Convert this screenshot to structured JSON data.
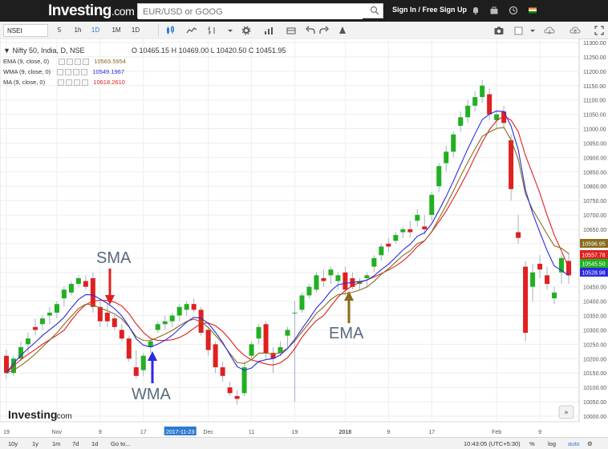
{
  "header": {
    "logo": "Investing",
    "logo_suffix": ".com",
    "search_placeholder": "EUR/USD or GOOG",
    "signin": "Sign In / Free Sign Up"
  },
  "toolbar": {
    "symbol": "NSEI",
    "intervals": [
      "5",
      "1h",
      "1D",
      "1M",
      "1D"
    ],
    "active_interval": "1D"
  },
  "legend": {
    "title": "Nifty 50, India, D, NSE",
    "ohlc": {
      "o": "O 10465.15",
      "h": "H 10469.00",
      "l": "L 10420.50",
      "c": "C 10451.95"
    },
    "indicators": [
      {
        "label": "EMA (9, close, 0)",
        "value": "10569.5954",
        "color": "#8a6a1e"
      },
      {
        "label": "WMA (9, close, 0)",
        "value": "10549.1967",
        "color": "#2a2ae0"
      },
      {
        "label": "MA (9, close, 0)",
        "value": "10618.2610",
        "color": "#e02020"
      }
    ]
  },
  "chart_data": {
    "type": "candlestick",
    "ylim": [
      10000,
      11300
    ],
    "y_ticks": [
      "11300.00",
      "11250.00",
      "11200.00",
      "11150.00",
      "11100.00",
      "11050.00",
      "11000.00",
      "10950.00",
      "10900.00",
      "10850.00",
      "10800.00",
      "10750.00",
      "10700.00",
      "10650.00",
      "10600.00",
      "10550.00",
      "10500.00",
      "10450.00",
      "10400.00",
      "10350.00",
      "10300.00",
      "10250.00",
      "10200.00",
      "10150.00",
      "10100.00",
      "10050.00",
      "10000.00"
    ],
    "x_ticks": [
      {
        "label": "19",
        "i": 0
      },
      {
        "label": "Nov",
        "i": 7
      },
      {
        "label": "9",
        "i": 13
      },
      {
        "label": "17",
        "i": 19
      },
      {
        "label": "2017-11-23",
        "i": 24,
        "highlight": true
      },
      {
        "label": "Dec",
        "i": 28
      },
      {
        "label": "11",
        "i": 34
      },
      {
        "label": "19",
        "i": 40
      },
      {
        "label": "2018",
        "i": 47
      },
      {
        "label": "9",
        "i": 53
      },
      {
        "label": "17",
        "i": 59
      },
      {
        "label": "Feb",
        "i": 68
      },
      {
        "label": "9",
        "i": 74
      }
    ],
    "price_tags": [
      {
        "value": "10596.95",
        "color": "#8a6a1e"
      },
      {
        "value": "10557.78",
        "color": "#e02020"
      },
      {
        "value": "10545.50",
        "color": "#21b021"
      },
      {
        "value": "10528.98",
        "color": "#2a2ae0"
      }
    ],
    "candles": [
      [
        10210,
        10230,
        10130,
        10150
      ],
      [
        10150,
        10210,
        10140,
        10200
      ],
      [
        10200,
        10260,
        10190,
        10240
      ],
      [
        10250,
        10290,
        10220,
        10270
      ],
      [
        10310,
        10340,
        10280,
        10300
      ],
      [
        10320,
        10350,
        10300,
        10340
      ],
      [
        10350,
        10380,
        10320,
        10360
      ],
      [
        10360,
        10400,
        10340,
        10390
      ],
      [
        10410,
        10450,
        10380,
        10440
      ],
      [
        10430,
        10470,
        10420,
        10460
      ],
      [
        10460,
        10490,
        10450,
        10480
      ],
      [
        10470,
        10490,
        10440,
        10450
      ],
      [
        10480,
        10500,
        10360,
        10380
      ],
      [
        10380,
        10400,
        10310,
        10330
      ],
      [
        10360,
        10390,
        10310,
        10330
      ],
      [
        10340,
        10350,
        10300,
        10310
      ],
      [
        10300,
        10320,
        10260,
        10270
      ],
      [
        10270,
        10280,
        10190,
        10200
      ],
      [
        10170,
        10230,
        10130,
        10140
      ],
      [
        10160,
        10220,
        10140,
        10210
      ],
      [
        10240,
        10270,
        10220,
        10260
      ],
      [
        10300,
        10330,
        10290,
        10320
      ],
      [
        10320,
        10350,
        10300,
        10330
      ],
      [
        10330,
        10360,
        10310,
        10350
      ],
      [
        10350,
        10390,
        10330,
        10380
      ],
      [
        10370,
        10400,
        10350,
        10390
      ],
      [
        10390,
        10410,
        10360,
        10370
      ],
      [
        10370,
        10380,
        10280,
        10290
      ],
      [
        10300,
        10310,
        10210,
        10230
      ],
      [
        10250,
        10260,
        10150,
        10170
      ],
      [
        10170,
        10190,
        10120,
        10140
      ],
      [
        10100,
        10120,
        10070,
        10080
      ],
      [
        10070,
        10090,
        10040,
        10060
      ],
      [
        10080,
        10190,
        10070,
        10170
      ],
      [
        10210,
        10260,
        10200,
        10250
      ],
      [
        10270,
        10320,
        10250,
        10310
      ],
      [
        10320,
        10330,
        10200,
        10220
      ],
      [
        10220,
        10240,
        10150,
        10200
      ],
      [
        10220,
        10260,
        10210,
        10240
      ],
      [
        10280,
        10310,
        10240,
        10300
      ],
      [
        10360,
        10400,
        10050,
        10360
      ],
      [
        10370,
        10430,
        10360,
        10420
      ],
      [
        10420,
        10460,
        10410,
        10450
      ],
      [
        10440,
        10500,
        10430,
        10490
      ],
      [
        10480,
        10510,
        10450,
        10470
      ],
      [
        10490,
        10520,
        10460,
        10510
      ],
      [
        10470,
        10500,
        10440,
        10490
      ],
      [
        10500,
        10520,
        10420,
        10440
      ],
      [
        10480,
        10500,
        10440,
        10450
      ],
      [
        10460,
        10480,
        10440,
        10470
      ],
      [
        10480,
        10500,
        10450,
        10490
      ],
      [
        10520,
        10560,
        10500,
        10550
      ],
      [
        10560,
        10600,
        10540,
        10590
      ],
      [
        10600,
        10620,
        10570,
        10590
      ],
      [
        10610,
        10640,
        10600,
        10630
      ],
      [
        10640,
        10660,
        10620,
        10650
      ],
      [
        10650,
        10680,
        10620,
        10640
      ],
      [
        10680,
        10720,
        10660,
        10700
      ],
      [
        10660,
        10700,
        10630,
        10650
      ],
      [
        10700,
        10780,
        10680,
        10770
      ],
      [
        10800,
        10880,
        10780,
        10870
      ],
      [
        10880,
        10940,
        10850,
        10920
      ],
      [
        10920,
        10990,
        10900,
        10980
      ],
      [
        11010,
        11060,
        10990,
        11040
      ],
      [
        11040,
        11100,
        11020,
        11080
      ],
      [
        11080,
        11130,
        11060,
        11110
      ],
      [
        11110,
        11170,
        11090,
        11150
      ],
      [
        11120,
        11140,
        11030,
        11050
      ],
      [
        11030,
        11060,
        11000,
        11050
      ],
      [
        11060,
        11080,
        11000,
        11020
      ],
      [
        10960,
        10980,
        10750,
        10790
      ],
      [
        10640,
        10700,
        10600,
        10620
      ],
      [
        10520,
        10540,
        10260,
        10290
      ],
      [
        10450,
        10530,
        10400,
        10500
      ],
      [
        10530,
        10560,
        10480,
        10510
      ],
      [
        10490,
        10520,
        10440,
        10460
      ],
      [
        10410,
        10450,
        10390,
        10430
      ],
      [
        10500,
        10560,
        10460,
        10550
      ],
      [
        10540,
        10570,
        10460,
        10490
      ]
    ],
    "annotations": [
      {
        "text": "SMA",
        "color": "#5a6a7e"
      },
      {
        "text": "WMA",
        "color": "#5a6a7e"
      },
      {
        "text": "EMA",
        "color": "#5a6a7e"
      }
    ]
  },
  "watermark": {
    "logo": "Investing",
    "suffix": ".com"
  },
  "bottombar": {
    "ranges": [
      "10y",
      "1y",
      "1m",
      "7d",
      "1d",
      "Go to..."
    ],
    "time": "10:43:05 (UTC+5:30)",
    "right": [
      "%",
      "log",
      "auto"
    ]
  },
  "colors": {
    "up": "#21b021",
    "down": "#e02020",
    "ema": "#8a6a1e",
    "wma": "#2a2ae0",
    "ma": "#e02020"
  }
}
